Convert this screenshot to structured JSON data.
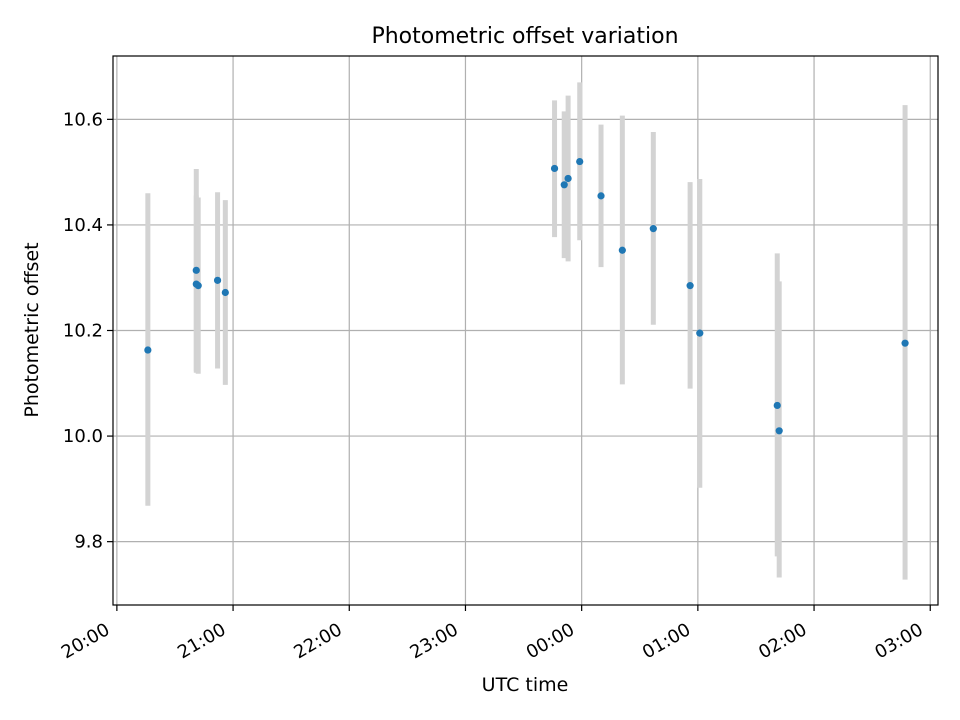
{
  "chart_data": {
    "type": "scatter",
    "title": "Photometric offset variation",
    "xlabel": "UTC time",
    "ylabel": "Photometric offset",
    "x_axis": {
      "kind": "time",
      "xlim": [
        "19:58",
        "03:04"
      ],
      "ticks": [
        "20:00",
        "21:00",
        "22:00",
        "23:00",
        "00:00",
        "01:00",
        "02:00",
        "03:00"
      ],
      "tick_values": [
        "20:00",
        "21:00",
        "22:00",
        "23:00",
        "00:00",
        "01:00",
        "02:00",
        "03:00"
      ]
    },
    "y_axis": {
      "ylim": [
        9.68,
        10.72
      ],
      "ticks": [
        "9.8",
        "10.0",
        "10.2",
        "10.4",
        "10.6"
      ],
      "tick_values": [
        9.8,
        10.0,
        10.2,
        10.4,
        10.6
      ]
    },
    "grid": true,
    "colors": {
      "point": "#1f77b4",
      "errorbar": "#d3d3d3",
      "grid": "#b0b0b0"
    },
    "points": [
      {
        "x": "20:16",
        "y": 10.163,
        "ylow": 9.868,
        "yhigh": 10.46
      },
      {
        "x": "20:41",
        "y": 10.314,
        "ylow": 10.123,
        "yhigh": 10.506
      },
      {
        "x": "20:41",
        "y": 10.288,
        "ylow": 10.12,
        "yhigh": 10.456
      },
      {
        "x": "20:42",
        "y": 10.285,
        "ylow": 10.118,
        "yhigh": 10.452
      },
      {
        "x": "20:52",
        "y": 10.295,
        "ylow": 10.128,
        "yhigh": 10.462
      },
      {
        "x": "20:56",
        "y": 10.272,
        "ylow": 10.097,
        "yhigh": 10.447
      },
      {
        "x": "23:46",
        "y": 10.507,
        "ylow": 10.377,
        "yhigh": 10.636
      },
      {
        "x": "23:51",
        "y": 10.476,
        "ylow": 10.337,
        "yhigh": 10.615
      },
      {
        "x": "23:53",
        "y": 10.488,
        "ylow": 10.331,
        "yhigh": 10.645
      },
      {
        "x": "23:59",
        "y": 10.52,
        "ylow": 10.371,
        "yhigh": 10.67
      },
      {
        "x": "00:10",
        "y": 10.455,
        "ylow": 10.32,
        "yhigh": 10.59
      },
      {
        "x": "00:21",
        "y": 10.352,
        "ylow": 10.098,
        "yhigh": 10.607
      },
      {
        "x": "00:37",
        "y": 10.393,
        "ylow": 10.211,
        "yhigh": 10.576
      },
      {
        "x": "00:56",
        "y": 10.285,
        "ylow": 10.09,
        "yhigh": 10.481
      },
      {
        "x": "01:01",
        "y": 10.195,
        "ylow": 9.902,
        "yhigh": 10.487
      },
      {
        "x": "01:41",
        "y": 10.058,
        "ylow": 9.772,
        "yhigh": 10.346
      },
      {
        "x": "01:42",
        "y": 10.01,
        "ylow": 9.732,
        "yhigh": 10.293
      },
      {
        "x": "02:47",
        "y": 10.176,
        "ylow": 9.728,
        "yhigh": 10.627
      }
    ]
  }
}
